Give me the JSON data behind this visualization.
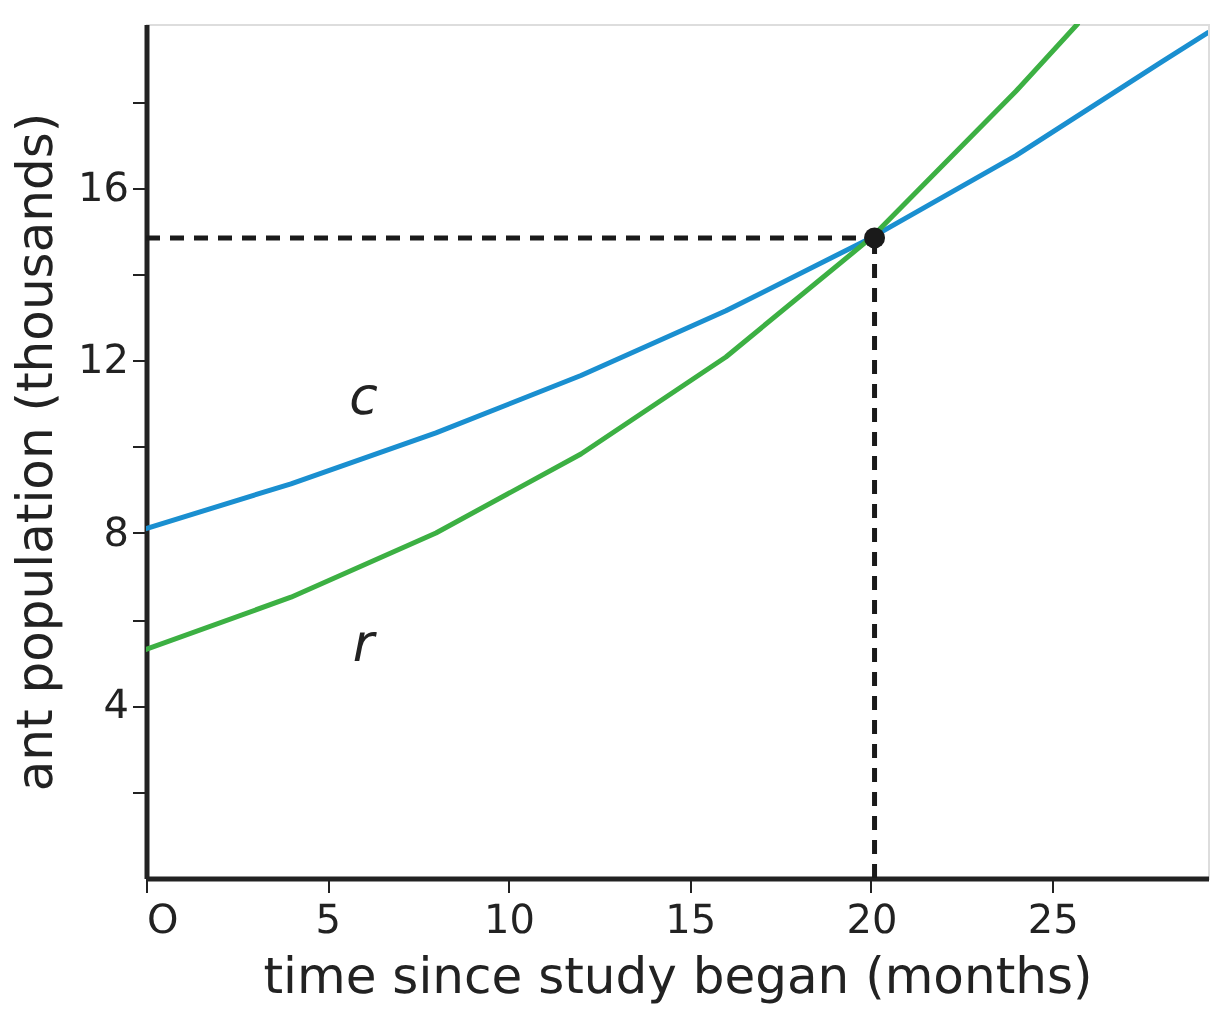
{
  "chart_data": {
    "type": "line",
    "xlabel": "time since study began (months)",
    "ylabel": "ant population (thousands)",
    "xlim": [
      0,
      29.3
    ],
    "ylim": [
      0,
      19.8
    ],
    "xticks": [
      {
        "value": 0,
        "label": "O"
      },
      5,
      10,
      15,
      20,
      25
    ],
    "yticks": [
      {
        "value": 2,
        "label": null
      },
      4,
      {
        "value": 6,
        "label": null
      },
      8,
      {
        "value": 10,
        "label": null
      },
      12,
      {
        "value": 14,
        "label": null
      },
      16,
      {
        "value": 18,
        "label": null
      }
    ],
    "grid": false,
    "marker": "none",
    "line_style": "solid",
    "series": [
      {
        "color": "#1a8fd0",
        "x": [
          0,
          4,
          8,
          12,
          16,
          20,
          24,
          28,
          29.3
        ],
        "values": [
          8.1,
          9.14,
          10.32,
          11.65,
          13.15,
          14.84,
          16.75,
          18.91,
          19.6
        ]
      },
      {
        "color": "#3cb043",
        "x": [
          0,
          4,
          8,
          12,
          16,
          20,
          24,
          25.7
        ],
        "values": [
          5.3,
          6.51,
          8.0,
          9.83,
          12.08,
          14.84,
          18.24,
          19.8
        ]
      },
      {
        "color": "#1a1a1a",
        "line_style": "dashed",
        "x": [
          0,
          20.1
        ],
        "values": [
          14.84,
          14.84
        ]
      },
      {
        "color": "#1a1a1a",
        "line_style": "dashed",
        "x": [
          20.1,
          20.1
        ],
        "values": [
          0,
          14.84
        ]
      },
      {
        "type": "scatter",
        "marker": "circle",
        "color": "#1a1a1a",
        "x": [
          20.1
        ],
        "values": [
          14.84
        ]
      }
    ],
    "annotations": [
      "c",
      "r"
    ]
  }
}
